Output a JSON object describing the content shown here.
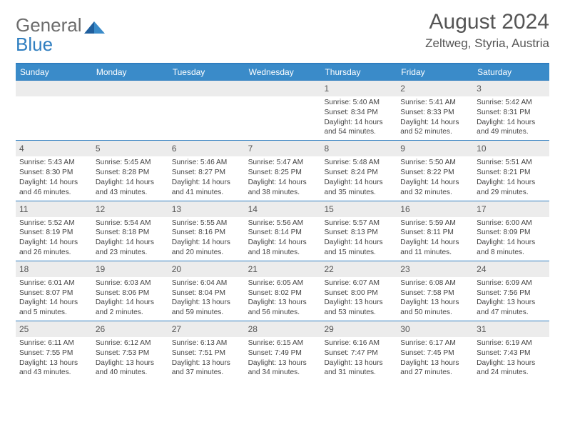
{
  "logo": {
    "word1": "General",
    "word2": "Blue"
  },
  "title": "August 2024",
  "location": "Zeltweg, Styria, Austria",
  "colors": {
    "header_bar": "#3a8bc9",
    "rule": "#2f7ec0",
    "daynum_bg": "#ececec",
    "text": "#444444",
    "title_text": "#555555"
  },
  "days_of_week": [
    "Sunday",
    "Monday",
    "Tuesday",
    "Wednesday",
    "Thursday",
    "Friday",
    "Saturday"
  ],
  "weeks": [
    [
      {
        "n": "",
        "sr": "",
        "ss": "",
        "dl": ""
      },
      {
        "n": "",
        "sr": "",
        "ss": "",
        "dl": ""
      },
      {
        "n": "",
        "sr": "",
        "ss": "",
        "dl": ""
      },
      {
        "n": "",
        "sr": "",
        "ss": "",
        "dl": ""
      },
      {
        "n": "1",
        "sr": "Sunrise: 5:40 AM",
        "ss": "Sunset: 8:34 PM",
        "dl": "Daylight: 14 hours and 54 minutes."
      },
      {
        "n": "2",
        "sr": "Sunrise: 5:41 AM",
        "ss": "Sunset: 8:33 PM",
        "dl": "Daylight: 14 hours and 52 minutes."
      },
      {
        "n": "3",
        "sr": "Sunrise: 5:42 AM",
        "ss": "Sunset: 8:31 PM",
        "dl": "Daylight: 14 hours and 49 minutes."
      }
    ],
    [
      {
        "n": "4",
        "sr": "Sunrise: 5:43 AM",
        "ss": "Sunset: 8:30 PM",
        "dl": "Daylight: 14 hours and 46 minutes."
      },
      {
        "n": "5",
        "sr": "Sunrise: 5:45 AM",
        "ss": "Sunset: 8:28 PM",
        "dl": "Daylight: 14 hours and 43 minutes."
      },
      {
        "n": "6",
        "sr": "Sunrise: 5:46 AM",
        "ss": "Sunset: 8:27 PM",
        "dl": "Daylight: 14 hours and 41 minutes."
      },
      {
        "n": "7",
        "sr": "Sunrise: 5:47 AM",
        "ss": "Sunset: 8:25 PM",
        "dl": "Daylight: 14 hours and 38 minutes."
      },
      {
        "n": "8",
        "sr": "Sunrise: 5:48 AM",
        "ss": "Sunset: 8:24 PM",
        "dl": "Daylight: 14 hours and 35 minutes."
      },
      {
        "n": "9",
        "sr": "Sunrise: 5:50 AM",
        "ss": "Sunset: 8:22 PM",
        "dl": "Daylight: 14 hours and 32 minutes."
      },
      {
        "n": "10",
        "sr": "Sunrise: 5:51 AM",
        "ss": "Sunset: 8:21 PM",
        "dl": "Daylight: 14 hours and 29 minutes."
      }
    ],
    [
      {
        "n": "11",
        "sr": "Sunrise: 5:52 AM",
        "ss": "Sunset: 8:19 PM",
        "dl": "Daylight: 14 hours and 26 minutes."
      },
      {
        "n": "12",
        "sr": "Sunrise: 5:54 AM",
        "ss": "Sunset: 8:18 PM",
        "dl": "Daylight: 14 hours and 23 minutes."
      },
      {
        "n": "13",
        "sr": "Sunrise: 5:55 AM",
        "ss": "Sunset: 8:16 PM",
        "dl": "Daylight: 14 hours and 20 minutes."
      },
      {
        "n": "14",
        "sr": "Sunrise: 5:56 AM",
        "ss": "Sunset: 8:14 PM",
        "dl": "Daylight: 14 hours and 18 minutes."
      },
      {
        "n": "15",
        "sr": "Sunrise: 5:57 AM",
        "ss": "Sunset: 8:13 PM",
        "dl": "Daylight: 14 hours and 15 minutes."
      },
      {
        "n": "16",
        "sr": "Sunrise: 5:59 AM",
        "ss": "Sunset: 8:11 PM",
        "dl": "Daylight: 14 hours and 11 minutes."
      },
      {
        "n": "17",
        "sr": "Sunrise: 6:00 AM",
        "ss": "Sunset: 8:09 PM",
        "dl": "Daylight: 14 hours and 8 minutes."
      }
    ],
    [
      {
        "n": "18",
        "sr": "Sunrise: 6:01 AM",
        "ss": "Sunset: 8:07 PM",
        "dl": "Daylight: 14 hours and 5 minutes."
      },
      {
        "n": "19",
        "sr": "Sunrise: 6:03 AM",
        "ss": "Sunset: 8:06 PM",
        "dl": "Daylight: 14 hours and 2 minutes."
      },
      {
        "n": "20",
        "sr": "Sunrise: 6:04 AM",
        "ss": "Sunset: 8:04 PM",
        "dl": "Daylight: 13 hours and 59 minutes."
      },
      {
        "n": "21",
        "sr": "Sunrise: 6:05 AM",
        "ss": "Sunset: 8:02 PM",
        "dl": "Daylight: 13 hours and 56 minutes."
      },
      {
        "n": "22",
        "sr": "Sunrise: 6:07 AM",
        "ss": "Sunset: 8:00 PM",
        "dl": "Daylight: 13 hours and 53 minutes."
      },
      {
        "n": "23",
        "sr": "Sunrise: 6:08 AM",
        "ss": "Sunset: 7:58 PM",
        "dl": "Daylight: 13 hours and 50 minutes."
      },
      {
        "n": "24",
        "sr": "Sunrise: 6:09 AM",
        "ss": "Sunset: 7:56 PM",
        "dl": "Daylight: 13 hours and 47 minutes."
      }
    ],
    [
      {
        "n": "25",
        "sr": "Sunrise: 6:11 AM",
        "ss": "Sunset: 7:55 PM",
        "dl": "Daylight: 13 hours and 43 minutes."
      },
      {
        "n": "26",
        "sr": "Sunrise: 6:12 AM",
        "ss": "Sunset: 7:53 PM",
        "dl": "Daylight: 13 hours and 40 minutes."
      },
      {
        "n": "27",
        "sr": "Sunrise: 6:13 AM",
        "ss": "Sunset: 7:51 PM",
        "dl": "Daylight: 13 hours and 37 minutes."
      },
      {
        "n": "28",
        "sr": "Sunrise: 6:15 AM",
        "ss": "Sunset: 7:49 PM",
        "dl": "Daylight: 13 hours and 34 minutes."
      },
      {
        "n": "29",
        "sr": "Sunrise: 6:16 AM",
        "ss": "Sunset: 7:47 PM",
        "dl": "Daylight: 13 hours and 31 minutes."
      },
      {
        "n": "30",
        "sr": "Sunrise: 6:17 AM",
        "ss": "Sunset: 7:45 PM",
        "dl": "Daylight: 13 hours and 27 minutes."
      },
      {
        "n": "31",
        "sr": "Sunrise: 6:19 AM",
        "ss": "Sunset: 7:43 PM",
        "dl": "Daylight: 13 hours and 24 minutes."
      }
    ]
  ]
}
